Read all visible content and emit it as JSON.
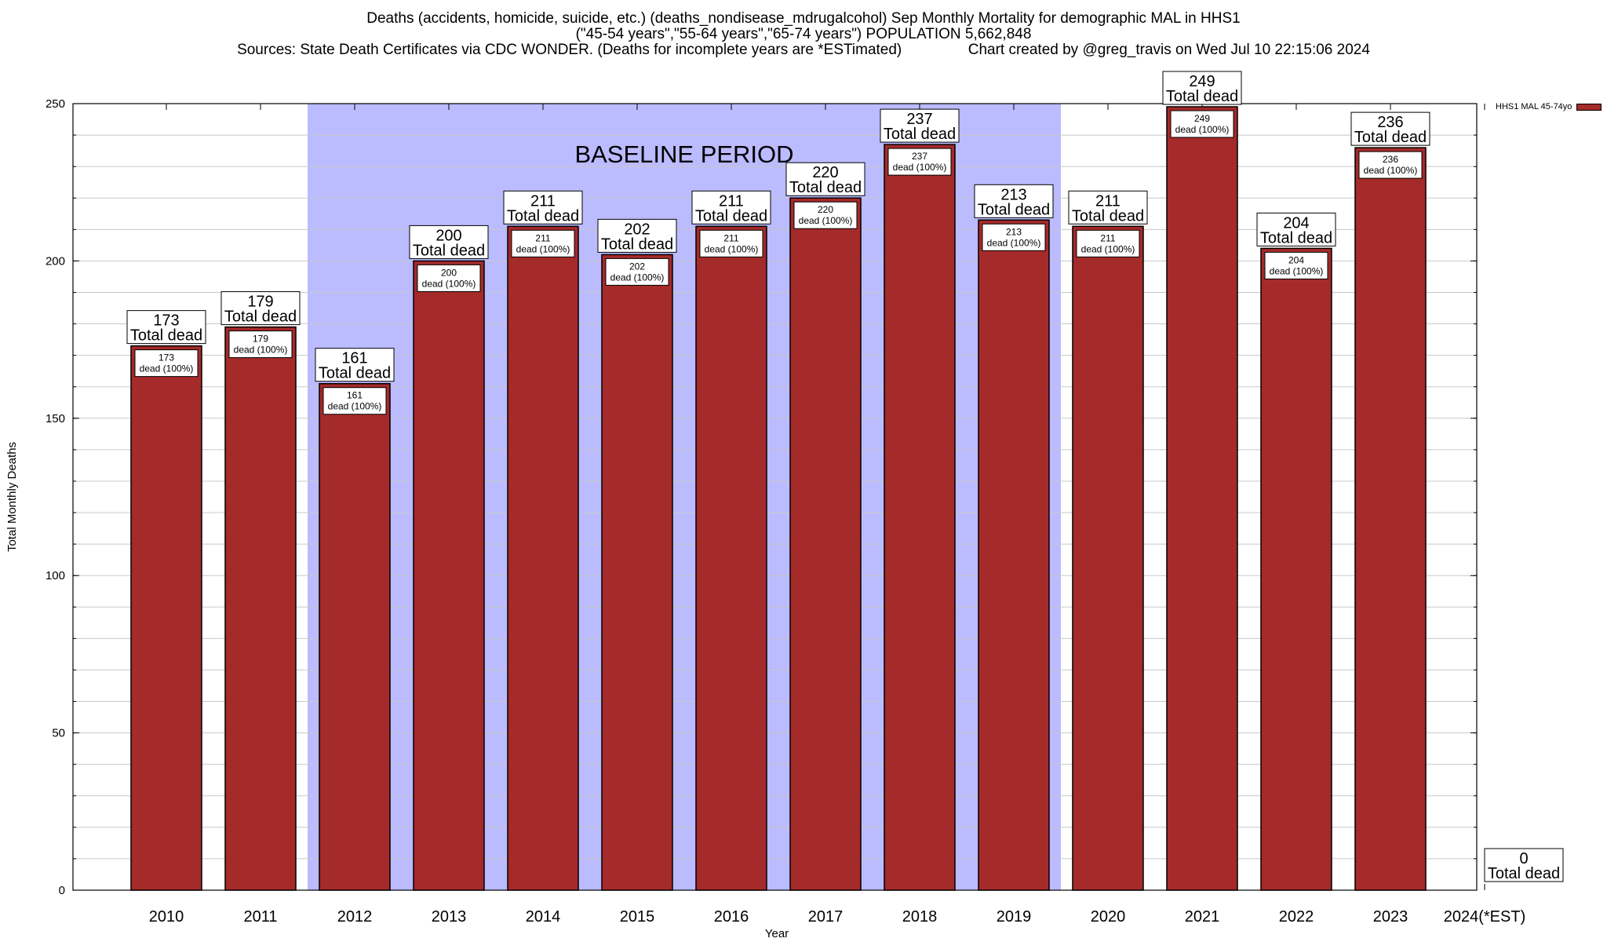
{
  "title": {
    "line1": "Deaths (accidents, homicide, suicide, etc.) (deaths_nondisease_mdrugalcohol) Sep Monthly Mortality for demographic MAL in HHS1",
    "line2": "(\"45-54 years\",\"55-64 years\",\"65-74 years\") POPULATION 5,662,848",
    "line3": "Sources: State Death Certificates via CDC WONDER. (Deaths for incomplete years are *ESTimated)                Chart created by @greg_travis on Wed Jul 10 22:15:06 2024"
  },
  "legend": {
    "label": "HHS1 MAL 45-74yo",
    "color": "#a52a2a"
  },
  "chart_data": {
    "type": "bar",
    "categories": [
      "2010",
      "2011",
      "2012",
      "2013",
      "2014",
      "2015",
      "2016",
      "2017",
      "2018",
      "2019",
      "2020",
      "2021",
      "2022",
      "2023",
      "2024(*EST)"
    ],
    "series": [
      {
        "name": "HHS1 MAL 45-74yo",
        "values": [
          173,
          179,
          161,
          200,
          211,
          202,
          211,
          220,
          237,
          213,
          211,
          249,
          204,
          236,
          0
        ]
      }
    ],
    "xlabel": "Year",
    "ylabel": "Total Monthly Deaths",
    "ylim": [
      0,
      250
    ],
    "yticks": [
      0,
      50,
      100,
      150,
      200,
      250
    ],
    "grid": true,
    "total_label_suffix": "Total dead",
    "inner_label_suffix": "dead (100%)",
    "baseline": {
      "label": "BASELINE PERIOD",
      "from": "2012",
      "to": "2019",
      "color": "#bbbbff"
    },
    "bar_color": "#a52a2a"
  }
}
